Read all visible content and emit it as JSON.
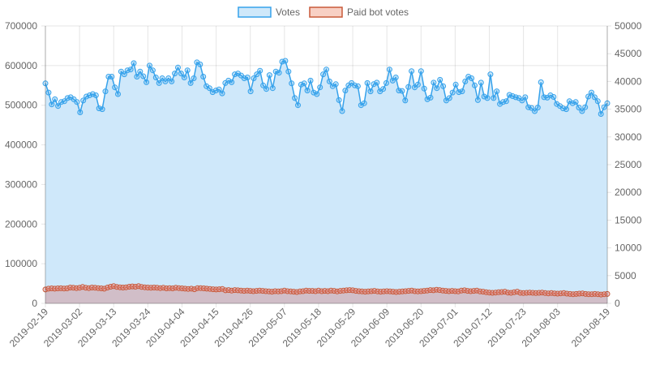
{
  "chart_data": {
    "type": "line",
    "legend_position": "top",
    "grid": true,
    "x_ticks": [
      "2019-02-19",
      "2019-03-02",
      "2019-03-13",
      "2019-03-24",
      "2019-04-04",
      "2019-04-15",
      "2019-04-26",
      "2019-05-07",
      "2019-05-18",
      "2019-05-29",
      "2019-06-09",
      "2019-06-20",
      "2019-07-01",
      "2019-07-12",
      "2019-07-23",
      "2019-08-03",
      "2019-08-19"
    ],
    "x_start": "2019-02-19",
    "x_end": "2019-08-19",
    "y_left": {
      "min": 0,
      "max": 700000,
      "ticks": [
        "700000",
        "600000",
        "500000",
        "400000",
        "300000",
        "200000",
        "100000",
        "0"
      ]
    },
    "y_right": {
      "min": 0,
      "max": 50000,
      "ticks": [
        "50000",
        "45000",
        "40000",
        "35000",
        "30000",
        "25000",
        "20000",
        "15000",
        "10000",
        "5000",
        "0"
      ]
    },
    "series": [
      {
        "name": "Votes",
        "axis": "left",
        "color": "#36a2eb",
        "fill": "#cfe8fa",
        "values": [
          555000,
          532000,
          502000,
          515000,
          498000,
          508000,
          510000,
          518000,
          520000,
          515000,
          508000,
          482000,
          512000,
          522000,
          525000,
          528000,
          525000,
          492000,
          490000,
          535000,
          572000,
          572000,
          545000,
          528000,
          585000,
          578000,
          588000,
          590000,
          606000,
          572000,
          585000,
          573000,
          558000,
          600000,
          588000,
          570000,
          556000,
          568000,
          560000,
          568000,
          560000,
          580000,
          595000,
          580000,
          570000,
          588000,
          556000,
          568000,
          608000,
          603000,
          572000,
          548000,
          543000,
          533000,
          537000,
          540000,
          530000,
          556000,
          562000,
          558000,
          578000,
          580000,
          575000,
          568000,
          570000,
          535000,
          568000,
          578000,
          587000,
          550000,
          541000,
          576000,
          543000,
          585000,
          582000,
          610000,
          612000,
          585000,
          555000,
          518000,
          500000,
          552000,
          555000,
          537000,
          562000,
          532000,
          528000,
          545000,
          578000,
          590000,
          560000,
          548000,
          553000,
          513000,
          485000,
          537000,
          550000,
          556000,
          550000,
          548000,
          500000,
          505000,
          556000,
          535000,
          553000,
          557000,
          535000,
          541000,
          556000,
          590000,
          562000,
          570000,
          537000,
          536000,
          512000,
          546000,
          586000,
          545000,
          552000,
          586000,
          542000,
          515000,
          519000,
          557000,
          543000,
          564000,
          548000,
          512000,
          518000,
          532000,
          552000,
          533000,
          535000,
          560000,
          572000,
          568000,
          550000,
          513000,
          557000,
          522000,
          518000,
          578000,
          518000,
          535000,
          503000,
          508000,
          510000,
          526000,
          523000,
          520000,
          518000,
          512000,
          520000,
          495000,
          493000,
          485000,
          494000,
          558000,
          520000,
          519000,
          525000,
          521000,
          503000,
          498000,
          492000,
          490000,
          510000,
          505000,
          508000,
          494000,
          485000,
          495000,
          522000,
          532000,
          520000,
          510000,
          478000,
          495000,
          505000
        ]
      },
      {
        "name": "Paid bot votes",
        "axis": "right",
        "color": "#c95a3a",
        "fill": "rgba(210,140,140,0.45)",
        "values": [
          2500,
          2650,
          2700,
          2650,
          2700,
          2720,
          2680,
          2700,
          2850,
          2800,
          2750,
          2800,
          2950,
          2800,
          2750,
          2850,
          2800,
          2750,
          2700,
          2650,
          2850,
          3000,
          3100,
          2950,
          2900,
          2850,
          2900,
          3000,
          3050,
          3000,
          3100,
          2950,
          2900,
          2850,
          2800,
          2850,
          2800,
          2750,
          2800,
          2700,
          2750,
          2700,
          2800,
          2750,
          2700,
          2650,
          2600,
          2650,
          2550,
          2750,
          2750,
          2700,
          2650,
          2600,
          2550,
          2500,
          2550,
          2600,
          2350,
          2400,
          2300,
          2400,
          2350,
          2300,
          2250,
          2300,
          2250,
          2200,
          2250,
          2300,
          2250,
          2200,
          2150,
          2100,
          2200,
          2150,
          2200,
          2300,
          2200,
          2150,
          2100,
          2050,
          2150,
          2200,
          2300,
          2250,
          2250,
          2200,
          2300,
          2200,
          2250,
          2200,
          2300,
          2250,
          2150,
          2250,
          2300,
          2350,
          2400,
          2350,
          2250,
          2200,
          2150,
          2100,
          2150,
          2200,
          2250,
          2150,
          2100,
          2150,
          2200,
          2150,
          2100,
          2050,
          2100,
          2150,
          2200,
          2250,
          2300,
          2200,
          2150,
          2200,
          2250,
          2300,
          2400,
          2350,
          2450,
          2400,
          2300,
          2250,
          2200,
          2250,
          2200,
          2150,
          2300,
          2350,
          2250,
          2200,
          2250,
          2300,
          2150,
          2100,
          2000,
          1950,
          1900,
          1950,
          2000,
          2050,
          2100,
          1950,
          1900,
          2000,
          2100,
          1900,
          1850,
          1900,
          1950,
          1900,
          1850,
          1900,
          1950,
          1850,
          1800,
          1850,
          1800,
          1750,
          1800,
          1850,
          1750,
          1700,
          1650,
          1700,
          1750,
          1800,
          1700,
          1650,
          1650,
          1700,
          1650,
          1600,
          1650,
          1700
        ]
      }
    ]
  }
}
